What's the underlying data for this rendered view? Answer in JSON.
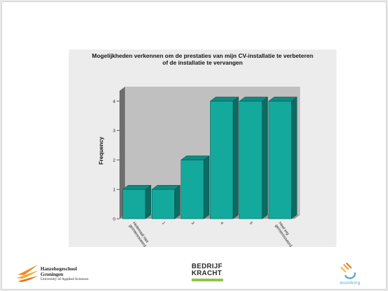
{
  "chart_data": {
    "type": "bar",
    "title": "Mogelijkheden verkennen om de prestaties van mijn CV-installatie te verbeteren of de installatie te vervangen",
    "title_lines": [
      "Mogelijkheden verkennen om de prestaties van mijn CV-installatie te verbeteren",
      "of de installatie te vervangen"
    ],
    "xlabel": "",
    "ylabel": "Frequency",
    "categories": [
      "Helemaal niet geïnteresseerd",
      "1",
      "3",
      "4",
      "5",
      "Heel erg geïnteresseerd"
    ],
    "category_lines": [
      [
        "Helemaal niet",
        "geïnteresseerd"
      ],
      [
        "1"
      ],
      [
        "3"
      ],
      [
        "4"
      ],
      [
        "5"
      ],
      [
        "Heel erg",
        "geïnteresseerd"
      ]
    ],
    "values": [
      1,
      1,
      2,
      4,
      4,
      4
    ],
    "yticks": [
      0,
      1,
      2,
      3,
      4
    ],
    "ylim": [
      0,
      4.35
    ],
    "style": "3d-bar",
    "colors": {
      "bar_front": "#14a99d",
      "bar_side": "#0c6b63",
      "bar_top": "#0f8a80",
      "plot_bg": "#c0c0c0",
      "wall": "#6e6e6e",
      "outer_bg": "#ececec"
    }
  },
  "footer": {
    "hanze": {
      "line1": "Hanzehogeschool",
      "line2": "Groningen",
      "line3": "University of Applied Sciences"
    },
    "bedrijf": {
      "line1": "BEDRIJF",
      "line2": "KRACHT"
    },
    "woonborg": {
      "text": "woonborg"
    }
  }
}
